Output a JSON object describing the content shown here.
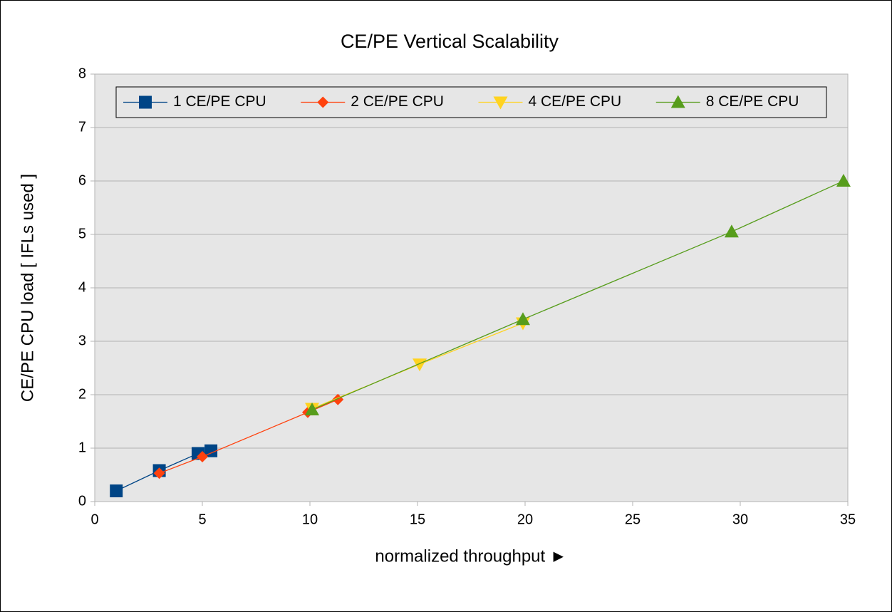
{
  "chart_data": {
    "type": "line",
    "title": "CE/PE Vertical Scalability",
    "xlabel": "normalized throughput ►",
    "ylabel": "CE/PE CPU load [ IFLs used ]",
    "xlim": [
      0,
      35
    ],
    "xticks": [
      0,
      5,
      10,
      15,
      20,
      25,
      30,
      35
    ],
    "ylim": [
      0,
      8
    ],
    "yticks": [
      0,
      1,
      2,
      3,
      4,
      5,
      6,
      7,
      8
    ],
    "grid": true,
    "legend": "top",
    "series": [
      {
        "name": "1 CE/PE CPU",
        "color": "#004586",
        "marker": "square",
        "x": [
          1,
          3,
          4.8,
          5.4
        ],
        "values": [
          0.2,
          0.58,
          0.9,
          0.95
        ]
      },
      {
        "name": "2 CE/PE CPU",
        "color": "#ff420e",
        "marker": "diamond",
        "x": [
          3,
          5,
          9.9,
          11.3
        ],
        "values": [
          0.53,
          0.84,
          1.67,
          1.91
        ]
      },
      {
        "name": "4 CE/PE CPU",
        "color": "#ffd320",
        "marker": "triangle-down",
        "x": [
          10.1,
          15.1,
          19.9
        ],
        "values": [
          1.74,
          2.57,
          3.34
        ]
      },
      {
        "name": "8 CE/PE CPU",
        "color": "#579d1c",
        "marker": "triangle-up",
        "x": [
          10.1,
          19.9,
          29.6,
          34.8
        ],
        "values": [
          1.72,
          3.41,
          5.05,
          6.0
        ]
      }
    ]
  }
}
